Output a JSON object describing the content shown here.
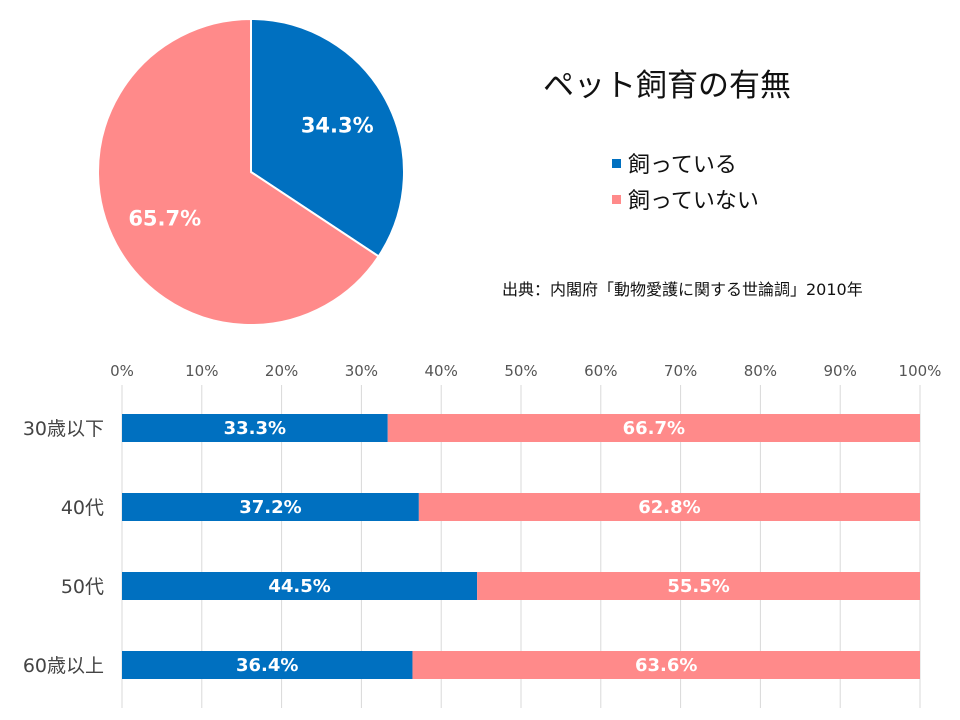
{
  "chart_data": [
    {
      "type": "pie",
      "title": "ペット飼育の有無",
      "slices": [
        {
          "label": "飼っている",
          "value": 34.3,
          "display": "34.3%",
          "color": "#0070C0"
        },
        {
          "label": "飼っていない",
          "value": 65.7,
          "display": "65.7%",
          "color": "#FF8A8A"
        }
      ],
      "legend_position": "right"
    },
    {
      "type": "bar",
      "orientation": "horizontal",
      "stacked": "percent",
      "categories": [
        "30歳以下",
        "40代",
        "50代",
        "60歳以上"
      ],
      "series": [
        {
          "name": "飼っている",
          "values": [
            33.3,
            37.2,
            44.5,
            36.4
          ],
          "labels": [
            "33.3%",
            "37.2%",
            "44.5%",
            "36.4%"
          ],
          "color": "#0070C0"
        },
        {
          "name": "飼っていない",
          "values": [
            66.7,
            62.8,
            55.5,
            63.6
          ],
          "labels": [
            "66.7%",
            "62.8%",
            "55.5%",
            "63.6%"
          ],
          "color": "#FF8A8A"
        }
      ],
      "xlim": [
        0,
        100
      ],
      "x_ticks": [
        "0%",
        "10%",
        "20%",
        "30%",
        "40%",
        "50%",
        "60%",
        "70%",
        "80%",
        "90%",
        "100%"
      ],
      "x_axis_position": "top",
      "grid": true
    }
  ],
  "source_note": "出典：内閣府「動物愛護に関する世論調」2010年"
}
